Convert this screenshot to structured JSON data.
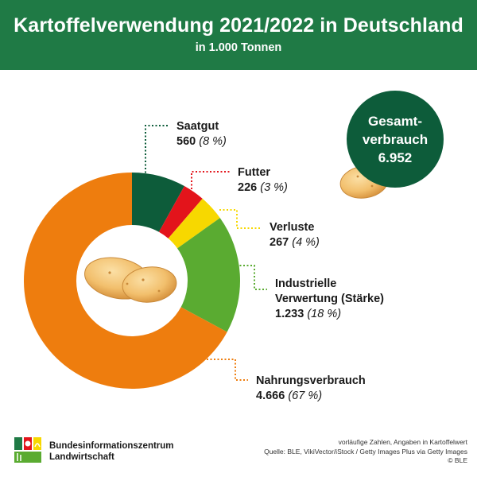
{
  "header": {
    "title": "Kartoffelverwendung 2021/2022 in Deutschland",
    "subtitle": "in 1.000 Tonnen"
  },
  "colors": {
    "header_bg": "#1f7a45",
    "saatgut": "#0d5c3a",
    "futter": "#e3141b",
    "verluste": "#f7d800",
    "industrie": "#5aab31",
    "nahrung": "#ee7d0e"
  },
  "chart_data": {
    "type": "pie",
    "donut": true,
    "title": "Kartoffelverwendung 2021/2022 in Deutschland",
    "subtitle": "in 1.000 Tonnen",
    "slices": [
      {
        "label": "Saatgut",
        "value": 560,
        "value_text": "560",
        "percent_text": "(8 %)",
        "color": "#0d5c3a"
      },
      {
        "label": "Futter",
        "value": 226,
        "value_text": "226",
        "percent_text": "(3 %)",
        "color": "#e3141b"
      },
      {
        "label": "Verluste",
        "value": 267,
        "value_text": "267",
        "percent_text": "(4 %)",
        "color": "#f7d800"
      },
      {
        "label": "Industrielle Verwertung (Stärke)",
        "label_line1": "Industrielle",
        "label_line2": "Verwertung (Stärke)",
        "value": 1233,
        "value_text": "1.233",
        "percent_text": "(18 %)",
        "color": "#5aab31"
      },
      {
        "label": "Nahrungsverbrauch",
        "value": 4666,
        "value_text": "4.666",
        "percent_text": "(67 %)",
        "color": "#ee7d0e"
      }
    ],
    "total": {
      "line1": "Gesamt-",
      "line2": "verbrauch",
      "value": 6952,
      "value_text": "6.952"
    }
  },
  "logo": {
    "line1": "Bundesinformationszentrum",
    "line2": "Landwirtschaft"
  },
  "footer": {
    "line1": "vorläufige Zahlen, Angaben in Kartoffelwert",
    "line2": "Quelle: BLE, VikiVector/iStock / Getty Images Plus via Getty Images",
    "line3": "© BLE"
  }
}
